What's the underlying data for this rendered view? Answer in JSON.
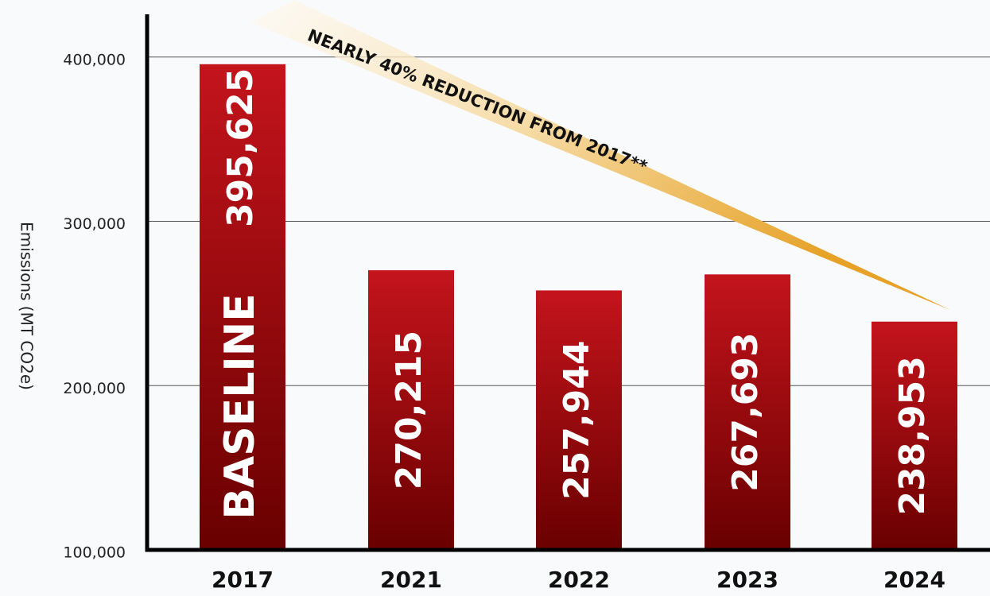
{
  "chart_data": {
    "type": "bar",
    "y_axis_label": "Emissions (MT CO2e)",
    "categories": [
      "2017",
      "2021",
      "2022",
      "2023",
      "2024"
    ],
    "values": [
      395625,
      270215,
      257944,
      267693,
      238953
    ],
    "value_labels": [
      "395,625",
      "270,215",
      "257,944",
      "267,693",
      "238,953"
    ],
    "color": "#a30d13",
    "ylim": [
      100000,
      426000
    ],
    "yticks": [
      {
        "value": 100000,
        "label": "100,000"
      },
      {
        "value": 200000,
        "label": "200,000"
      },
      {
        "value": 300000,
        "label": "300,000"
      },
      {
        "value": 400000,
        "label": "400,000"
      }
    ],
    "grid": true,
    "annotations": [
      "BASELINE",
      "NEARLY 40% REDUCTION FROM 2017**"
    ]
  }
}
